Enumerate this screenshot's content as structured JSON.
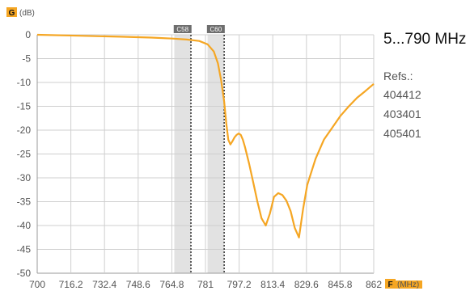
{
  "chart_data": {
    "type": "line",
    "y_axis": {
      "tag": "G",
      "unit": "(dB)",
      "min": -50,
      "max": 0,
      "ticks": [
        0,
        -5,
        -10,
        -15,
        -20,
        -25,
        -30,
        -35,
        -40,
        -45,
        -50
      ]
    },
    "x_axis": {
      "tag": "F",
      "unit": "(MHz)",
      "min": 700,
      "max": 862,
      "ticks": [
        700,
        716.2,
        732.4,
        748.6,
        764.8,
        781,
        797.2,
        813.4,
        829.6,
        845.8,
        862
      ]
    },
    "grid": true,
    "channels": [
      {
        "label": "C58",
        "from": 766,
        "to": 774,
        "marker": 774
      },
      {
        "label": "C60",
        "from": 782,
        "to": 790,
        "marker": 790
      }
    ],
    "series": [
      {
        "color": "#f5a623",
        "x": [
          700,
          720,
          740,
          755,
          765,
          772,
          778,
          782,
          785,
          787,
          788.5,
          790,
          791,
          792,
          793,
          794,
          795,
          796,
          797,
          798,
          799,
          800,
          802,
          804,
          806,
          808,
          810,
          812,
          814,
          816,
          818,
          820,
          822,
          824,
          826,
          828,
          830,
          834,
          838,
          842,
          846,
          850,
          854,
          858,
          862
        ],
        "y": [
          0,
          -0.2,
          -0.4,
          -0.6,
          -0.8,
          -1.0,
          -1.3,
          -2.0,
          -3.5,
          -6.0,
          -9.5,
          -14.0,
          -18.5,
          -22.0,
          -23.0,
          -22.3,
          -21.5,
          -21.0,
          -20.7,
          -21.0,
          -22.0,
          -23.5,
          -27.0,
          -31.0,
          -35.0,
          -38.5,
          -40.0,
          -37.5,
          -34.0,
          -33.2,
          -33.6,
          -34.8,
          -37.0,
          -40.5,
          -42.5,
          -36.5,
          -31.5,
          -26.0,
          -22.0,
          -19.5,
          -17.0,
          -15.0,
          -13.2,
          -11.8,
          -10.3
        ]
      }
    ]
  },
  "side_panel": {
    "band_title": "5...790 MHz",
    "refs_label": "Refs.:",
    "refs": [
      "404412",
      "403401",
      "405401"
    ]
  },
  "style": {
    "curve_color": "#f5a623",
    "band_color": "#e2e2e2",
    "tag_color": "#f5a623"
  }
}
